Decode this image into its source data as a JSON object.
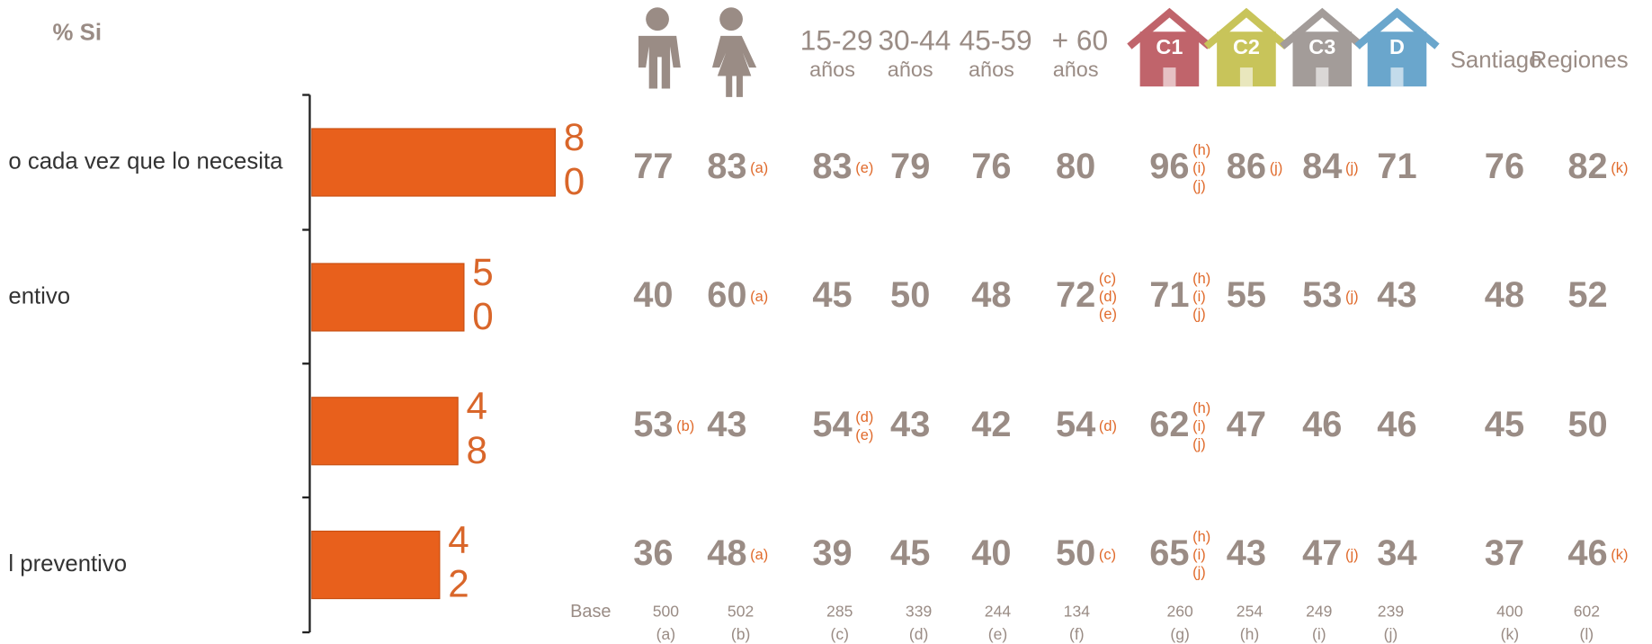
{
  "chart_data": {
    "type": "bar",
    "title": "% Si",
    "categories": [
      "o cada vez que lo necesita",
      "entivo",
      null,
      "l preventivo"
    ],
    "values": [
      80,
      50,
      48,
      42
    ],
    "color": "#e8601c",
    "xlim": [
      0,
      100
    ]
  },
  "table": {
    "base_label": "Base",
    "columns": [
      {
        "icon": "man",
        "base": 500,
        "letter": "(a)"
      },
      {
        "icon": "woman",
        "base": 502,
        "letter": "(b)"
      },
      {
        "label": "15-29",
        "sublabel": "años",
        "base": 285,
        "letter": "(c)"
      },
      {
        "label": "30-44",
        "sublabel": "años",
        "base": 339,
        "letter": "(d)"
      },
      {
        "label": "45-59",
        "sublabel": "años",
        "base": 244,
        "letter": "(e)"
      },
      {
        "label": "+ 60",
        "sublabel": "años",
        "base": 134,
        "letter": "(f)"
      },
      {
        "house": "C1",
        "color": "#c0646b",
        "base": 260,
        "letter": "(g)"
      },
      {
        "house": "C2",
        "color": "#c8c45a",
        "base": 254,
        "letter": "(h)"
      },
      {
        "house": "C3",
        "color": "#a39c99",
        "base": 249,
        "letter": "(i)"
      },
      {
        "house": "D",
        "color": "#6aa6cc",
        "base": 239,
        "letter": "(j)"
      },
      {
        "name": "Santiago",
        "base": 400,
        "letter": "(k)"
      },
      {
        "name": "Regiones",
        "base": 602,
        "letter": "(l)"
      }
    ],
    "rows": [
      {
        "values": [
          77,
          83,
          83,
          79,
          76,
          80,
          96,
          86,
          84,
          71,
          76,
          82
        ],
        "sig": [
          [],
          [
            "(a)"
          ],
          [
            "(e)"
          ],
          [],
          [],
          [],
          [
            "(h)",
            "(i)",
            "(j)"
          ],
          [
            "(j)"
          ],
          [
            "(j)"
          ],
          [],
          [],
          [
            "(k)"
          ]
        ]
      },
      {
        "values": [
          40,
          60,
          45,
          50,
          48,
          72,
          71,
          55,
          53,
          43,
          48,
          52
        ],
        "sig": [
          [],
          [
            "(a)"
          ],
          [],
          [],
          [],
          [
            "(c)",
            "(d)",
            "(e)"
          ],
          [
            "(h)",
            "(i)",
            "(j)"
          ],
          [],
          [
            "(j)"
          ],
          [],
          [],
          []
        ]
      },
      {
        "values": [
          53,
          43,
          54,
          43,
          42,
          54,
          62,
          47,
          46,
          46,
          45,
          50
        ],
        "sig": [
          [
            "(b)"
          ],
          [],
          [
            "(d)",
            "(e)"
          ],
          [],
          [],
          [
            "(d)"
          ],
          [
            "(h)",
            "(i)",
            "(j)"
          ],
          [],
          [],
          [],
          [],
          []
        ]
      },
      {
        "values": [
          36,
          48,
          39,
          45,
          40,
          50,
          65,
          43,
          47,
          34,
          37,
          46
        ],
        "sig": [
          [],
          [
            "(a)"
          ],
          [],
          [],
          [],
          [
            "(c)"
          ],
          [
            "(h)",
            "(i)",
            "(j)"
          ],
          [],
          [
            "(j)"
          ],
          [],
          [],
          [
            "(k)"
          ]
        ]
      }
    ]
  }
}
